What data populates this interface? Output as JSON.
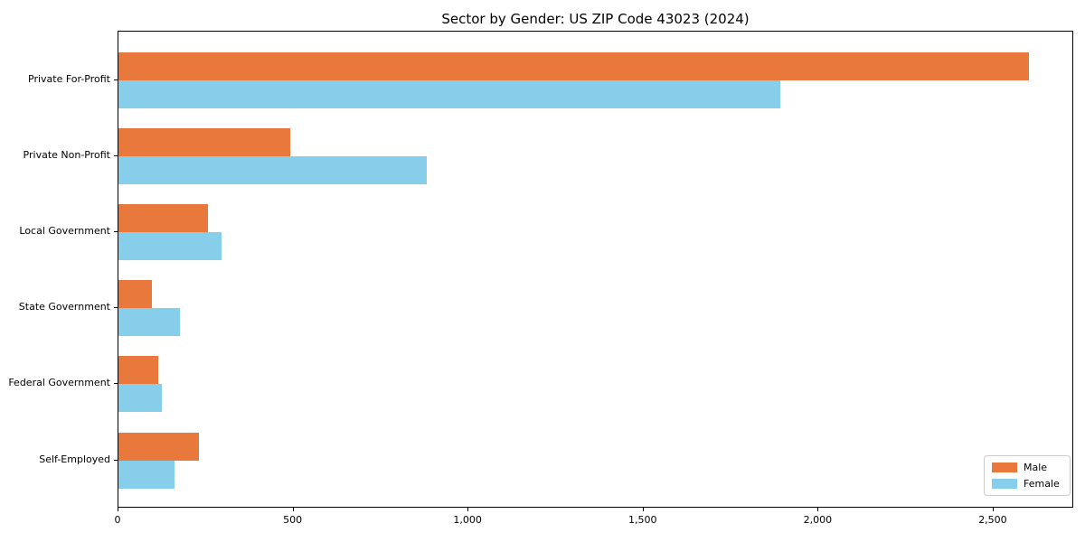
{
  "chart_data": {
    "type": "bar",
    "orientation": "horizontal",
    "title": "Sector by Gender: US ZIP Code 43023 (2024)",
    "categories": [
      "Private For-Profit",
      "Private Non-Profit",
      "Local Government",
      "State Government",
      "Federal Government",
      "Self-Employed"
    ],
    "series": [
      {
        "name": "Male",
        "color": "#e8783c",
        "values": [
          2600,
          490,
          255,
          95,
          113,
          230
        ]
      },
      {
        "name": "Female",
        "color": "#87ceeb",
        "values": [
          1890,
          880,
          295,
          175,
          125,
          160
        ]
      }
    ],
    "xlabel": "",
    "ylabel": "",
    "xlim": [
      0,
      2730
    ],
    "xticks": [
      0,
      500,
      1000,
      1500,
      2000,
      2500
    ],
    "xtick_labels": [
      "0",
      "500",
      "1,000",
      "1,500",
      "2,000",
      "2,500"
    ],
    "grid": false,
    "legend": {
      "position": "lower right",
      "entries": [
        "Male",
        "Female"
      ]
    }
  }
}
